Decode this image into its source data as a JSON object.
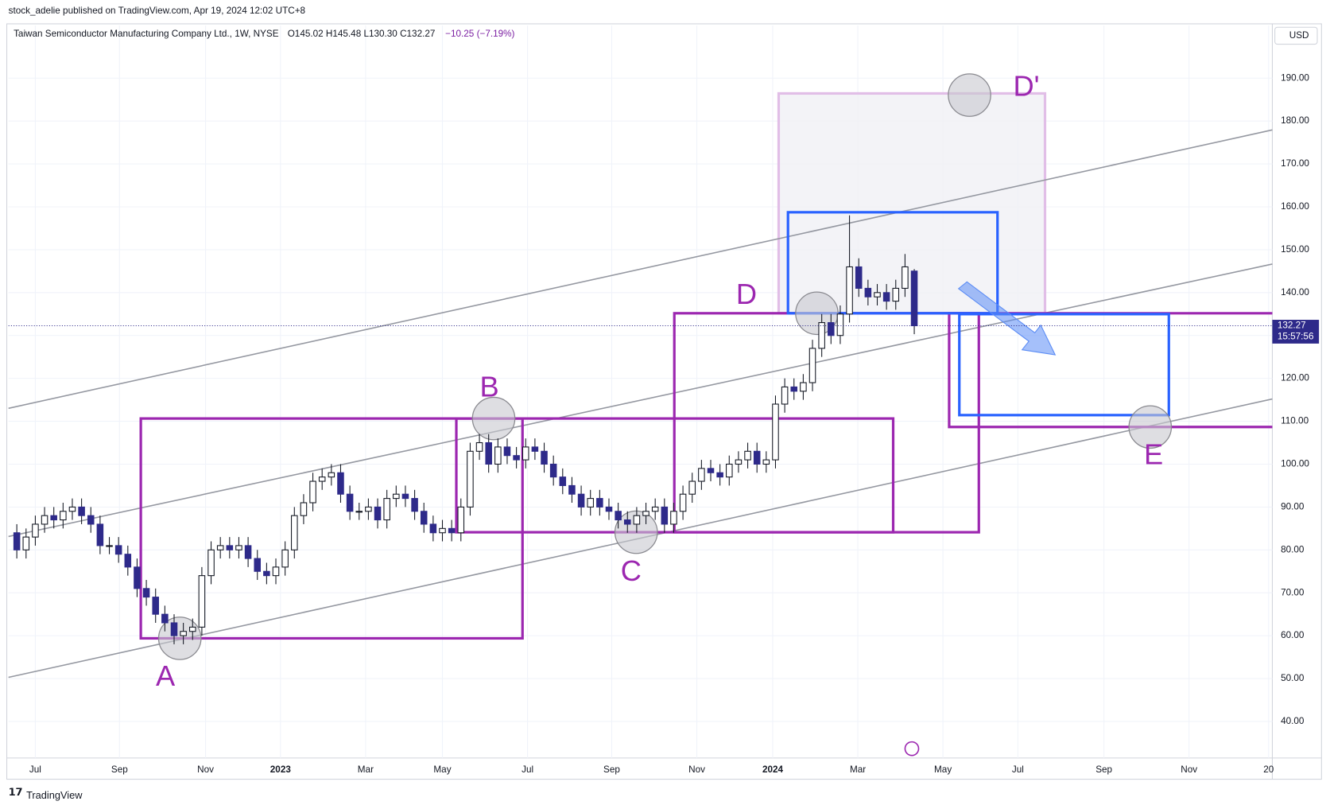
{
  "header": {
    "publisher": "stock_adelie published on TradingView.com, Apr 19, 2024 12:02 UTC+8",
    "symbol": "Taiwan Semiconductor Manufacturing Company Ltd., 1W, NYSE",
    "ohlc": "O145.02 H145.48 L130.30 C132.27",
    "change": "−10.25 (−7.19%)",
    "currency": "USD",
    "timer": "15:57:56",
    "brand": "TradingView"
  },
  "annotations": [
    "A",
    "B",
    "C",
    "D",
    "D'",
    "E"
  ],
  "chart_data": {
    "type": "candlestick",
    "up_color": "#ffffff",
    "down_color": "#2e2a8a",
    "wick_color": "#131722",
    "open": [
      84,
      80,
      83,
      86,
      88,
      87,
      89,
      90,
      88,
      86,
      81,
      81,
      79,
      76,
      71,
      69,
      65,
      63,
      60,
      61,
      62,
      74,
      80,
      81,
      80,
      81,
      78,
      75,
      74,
      76,
      80,
      88,
      91,
      96,
      97,
      98,
      93,
      89,
      89,
      90,
      87,
      92,
      93,
      92,
      89,
      86,
      84,
      85,
      84,
      90,
      103,
      105,
      100,
      104,
      102,
      101,
      104,
      103,
      100,
      97,
      95,
      93,
      90,
      92,
      90,
      89,
      87,
      86,
      88,
      89,
      90,
      86,
      89,
      93,
      96,
      99,
      98,
      97,
      100,
      101,
      103,
      100,
      101,
      114,
      118,
      117,
      119,
      127,
      133,
      130,
      135,
      146,
      141,
      139,
      140,
      138,
      141,
      145.02
    ],
    "high": [
      86,
      85,
      88,
      90,
      90,
      91,
      92,
      92,
      90,
      88,
      83,
      83,
      81,
      78,
      73,
      71,
      67,
      65,
      63,
      64,
      76,
      82,
      83,
      83,
      83,
      83,
      80,
      77,
      78,
      82,
      90,
      93,
      98,
      99,
      100,
      100,
      95,
      91,
      92,
      92,
      94,
      95,
      95,
      94,
      91,
      88,
      87,
      87,
      92,
      105,
      107,
      107,
      106,
      106,
      104,
      106,
      106,
      105,
      102,
      99,
      97,
      95,
      94,
      94,
      92,
      91,
      89,
      90,
      91,
      92,
      92,
      91,
      95,
      98,
      101,
      101,
      100,
      102,
      103,
      105,
      105,
      103,
      116,
      120,
      120,
      121,
      129,
      135,
      135,
      137,
      158,
      148,
      143,
      142,
      142,
      143,
      149,
      145.48
    ],
    "low": [
      78,
      78,
      81,
      84,
      85,
      85,
      87,
      86,
      84,
      79,
      79,
      77,
      74,
      69,
      67,
      63,
      61,
      58,
      58,
      59,
      60,
      72,
      78,
      78,
      78,
      76,
      73,
      72,
      72,
      74,
      78,
      86,
      89,
      94,
      95,
      91,
      87,
      87,
      87,
      85,
      85,
      90,
      90,
      87,
      84,
      82,
      82,
      82,
      82,
      88,
      101,
      98,
      98,
      100,
      99,
      99,
      101,
      98,
      95,
      93,
      91,
      88,
      88,
      88,
      87,
      85,
      84,
      84,
      86,
      87,
      84,
      84,
      87,
      91,
      94,
      96,
      95,
      95,
      98,
      99,
      98,
      98,
      99,
      112,
      115,
      115,
      117,
      125,
      128,
      128,
      133,
      139,
      137,
      137,
      136,
      136,
      139,
      130.3
    ],
    "close": [
      80,
      83,
      86,
      88,
      87,
      89,
      90,
      88,
      86,
      81,
      81,
      79,
      76,
      71,
      69,
      65,
      63,
      60,
      61,
      62,
      74,
      80,
      81,
      80,
      81,
      78,
      75,
      74,
      76,
      80,
      88,
      91,
      96,
      97,
      98,
      93,
      89,
      89,
      90,
      87,
      92,
      93,
      92,
      89,
      86,
      84,
      85,
      84,
      90,
      103,
      105,
      100,
      104,
      102,
      101,
      104,
      103,
      100,
      97,
      95,
      93,
      90,
      92,
      90,
      89,
      87,
      86,
      88,
      89,
      90,
      86,
      89,
      93,
      96,
      99,
      98,
      97,
      100,
      101,
      103,
      100,
      101,
      114,
      118,
      117,
      119,
      127,
      133,
      130,
      135,
      146,
      141,
      139,
      140,
      138,
      141,
      146,
      132.27
    ],
    "xlim": [
      -0.9,
      135.7
    ],
    "xticks": [
      {
        "value": 2.0,
        "label": "Jul"
      },
      {
        "value": 11.1,
        "label": "Sep"
      },
      {
        "value": 20.4,
        "label": "Nov"
      },
      {
        "value": 28.5,
        "label": "2023"
      },
      {
        "value": 37.7,
        "label": "Mar"
      },
      {
        "value": 46.0,
        "label": "May"
      },
      {
        "value": 55.2,
        "label": "Jul"
      },
      {
        "value": 64.3,
        "label": "Sep"
      },
      {
        "value": 73.5,
        "label": "Nov"
      },
      {
        "value": 81.7,
        "label": "2024"
      },
      {
        "value": 90.9,
        "label": "Mar"
      },
      {
        "value": 100.1,
        "label": "May"
      },
      {
        "value": 108.2,
        "label": "Jul"
      },
      {
        "value": 117.5,
        "label": "Sep"
      },
      {
        "value": 126.7,
        "label": "Nov"
      },
      {
        "value": 135.3,
        "label": "20"
      }
    ],
    "ylim": [
      31.48,
      202.27
    ],
    "yticks": [
      {
        "value": 40,
        "label": "40.00"
      },
      {
        "value": 50,
        "label": "50.00"
      },
      {
        "value": 60,
        "label": "60.00"
      },
      {
        "value": 70,
        "label": "70.00"
      },
      {
        "value": 80,
        "label": "80.00"
      },
      {
        "value": 90,
        "label": "90.00"
      },
      {
        "value": 100,
        "label": "100.00"
      },
      {
        "value": 110,
        "label": "110.00"
      },
      {
        "value": 120,
        "label": "120.00"
      },
      {
        "value": 130,
        "label": "130.00"
      },
      {
        "value": 140,
        "label": "140.00"
      },
      {
        "value": 150,
        "label": "150.00"
      },
      {
        "value": 160,
        "label": "160.00"
      },
      {
        "value": 170,
        "label": "170.00"
      },
      {
        "value": 180,
        "label": "180.00"
      },
      {
        "value": 190,
        "label": "190.00"
      }
    ],
    "grid": true
  }
}
